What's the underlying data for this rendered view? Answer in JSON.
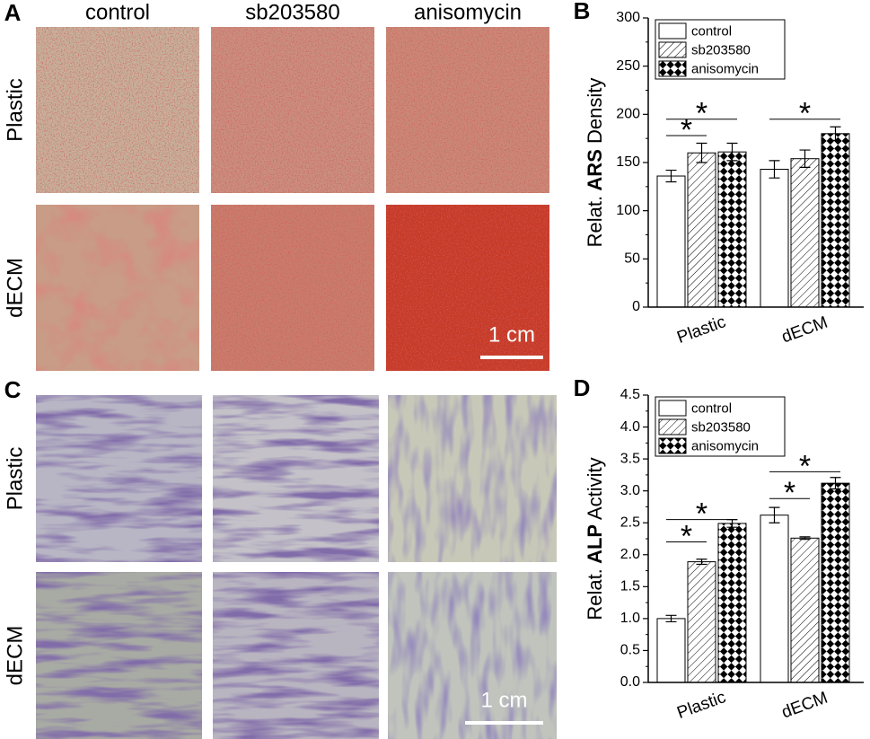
{
  "photo_panels": [
    {
      "letter": "A",
      "columns": [
        "control",
        "sb203580",
        "anisomycin"
      ],
      "rows": [
        "Plastic",
        "dECM"
      ],
      "scale_bar": "1 cm"
    },
    {
      "letter": "C",
      "rows": [
        "Plastic",
        "dECM"
      ],
      "scale_bar": "1 cm"
    }
  ],
  "chart_data": [
    {
      "type": "bar",
      "panel": "B",
      "ylabel": [
        "Relat.",
        "ARS",
        "Density"
      ],
      "categories": [
        "Plastic",
        "dECM"
      ],
      "series": [
        {
          "name": "control",
          "color": "#ffffff",
          "pattern": "none",
          "values": [
            136,
            143
          ],
          "errors": [
            6,
            9
          ]
        },
        {
          "name": "sb203580",
          "color": "#ffffff",
          "pattern": "hatch",
          "values": [
            160,
            154
          ],
          "errors": [
            10,
            9
          ]
        },
        {
          "name": "anisomycin",
          "color": "#000000",
          "pattern": "checker",
          "values": [
            161,
            180
          ],
          "errors": [
            9,
            7
          ]
        }
      ],
      "ylim": [
        0,
        300
      ],
      "yticks": [
        0,
        50,
        100,
        150,
        200,
        250,
        300
      ],
      "legend": "upper left",
      "significance": [
        {
          "label": "*",
          "category": 0,
          "series": [
            0,
            1
          ],
          "y": 178
        },
        {
          "label": "*",
          "category": 0,
          "series": [
            0,
            2
          ],
          "y": 195
        },
        {
          "label": "*",
          "category": 1,
          "series": [
            0,
            2
          ],
          "y": 195
        }
      ]
    },
    {
      "type": "bar",
      "panel": "D",
      "ylabel": [
        "Relat.",
        "ALP",
        "Activity"
      ],
      "categories": [
        "Plastic",
        "dECM"
      ],
      "series": [
        {
          "name": "control",
          "color": "#ffffff",
          "pattern": "none",
          "values": [
            1.0,
            2.62
          ],
          "errors": [
            0.05,
            0.12
          ]
        },
        {
          "name": "sb203580",
          "color": "#ffffff",
          "pattern": "hatch",
          "values": [
            1.89,
            2.26
          ],
          "errors": [
            0.04,
            0.02
          ]
        },
        {
          "name": "anisomycin",
          "color": "#000000",
          "pattern": "checker",
          "values": [
            2.49,
            3.12
          ],
          "errors": [
            0.06,
            0.09
          ]
        }
      ],
      "ylim": [
        0,
        4.5
      ],
      "yticks": [
        {
          "value": 0,
          "label": "0.0"
        },
        0.5,
        {
          "value": 1,
          "label": "1.0"
        },
        1.5,
        {
          "value": 2,
          "label": "2.0"
        },
        2.5,
        {
          "value": 3,
          "label": "3.0"
        },
        3.5,
        {
          "value": 4,
          "label": "4.0"
        },
        4.5
      ],
      "legend": "upper left",
      "significance": [
        {
          "label": "*",
          "category": 0,
          "series": [
            0,
            1
          ],
          "y": 2.2
        },
        {
          "label": "*",
          "category": 0,
          "series": [
            0,
            2
          ],
          "y": 2.55
        },
        {
          "label": "*",
          "category": 1,
          "series": [
            0,
            1
          ],
          "y": 2.88
        },
        {
          "label": "*",
          "category": 1,
          "series": [
            0,
            2
          ],
          "y": 3.3
        }
      ]
    }
  ]
}
